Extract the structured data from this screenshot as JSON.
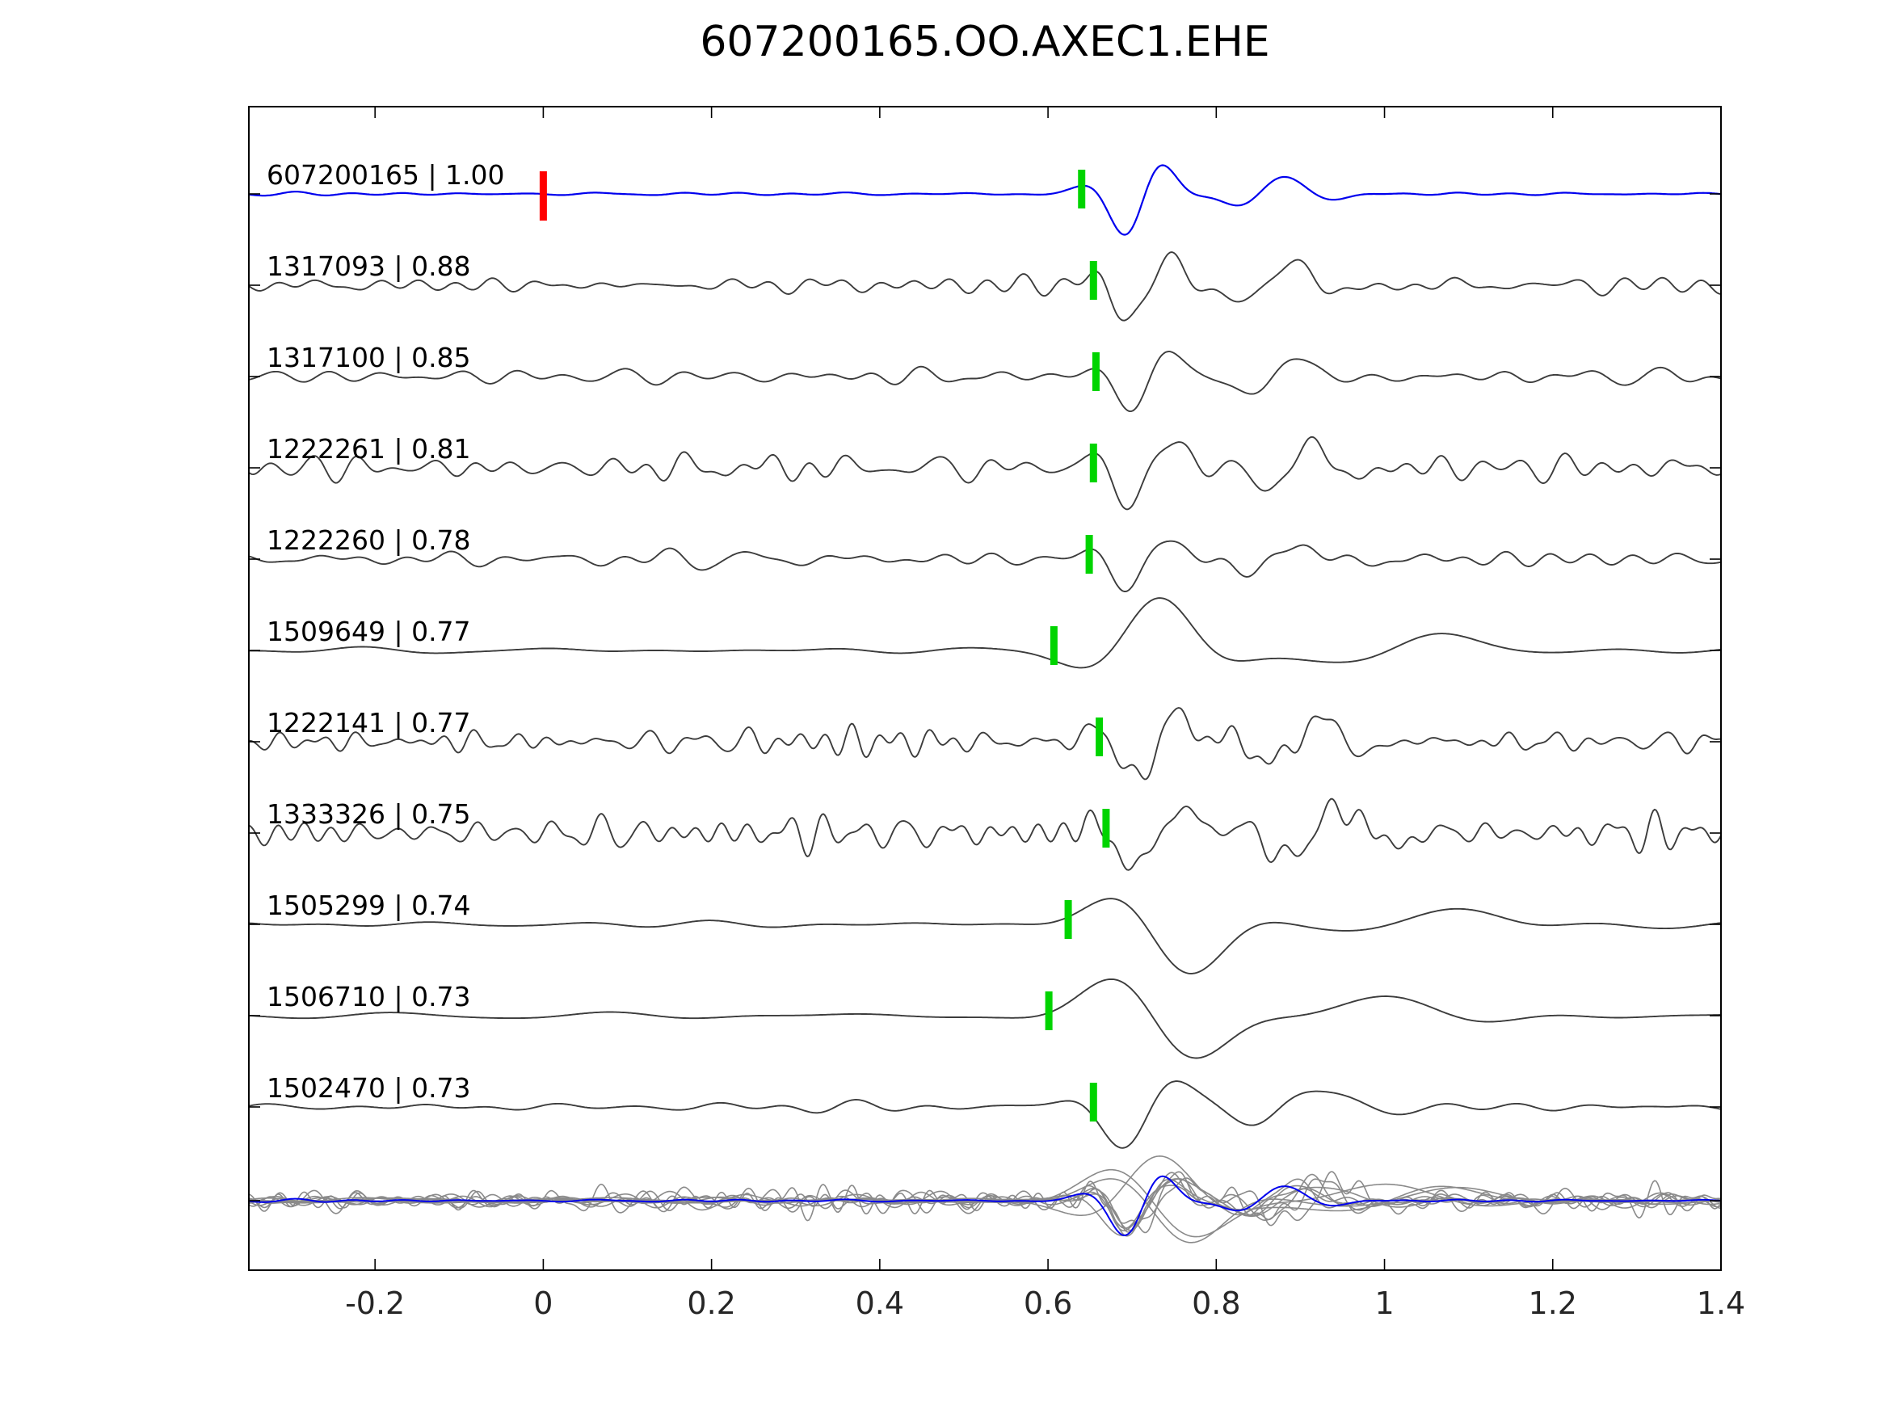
{
  "title": "607200165.OO.AXEC1.EHE",
  "chart_data": {
    "type": "line",
    "title": "607200165.OO.AXEC1.EHE",
    "xlabel": "",
    "ylabel": "",
    "xlim": [
      -0.35,
      1.4
    ],
    "x_ticks": [
      -0.2,
      0,
      0.2,
      0.4,
      0.6,
      0.8,
      1,
      1.2,
      1.4
    ],
    "x_tick_labels": [
      "-0.2",
      "0",
      "0.2",
      "0.4",
      "0.6",
      "0.8",
      "1",
      "1.2",
      "1.4"
    ],
    "grid": false,
    "legend": "none",
    "label_separator": " | ",
    "colors": {
      "template": "#0000ee",
      "trace": "#3c3c3c",
      "overlay": "#8a8a8a",
      "pick": "#00d400",
      "origin_marker": "#ff0000",
      "frame": "#000000",
      "text": "#000000",
      "tick_text": "#262626"
    },
    "template_origin_time": 0.0,
    "overlay_scale": 0.85,
    "traces": [
      {
        "id": "607200165",
        "cc": "1.00",
        "pick": 0.64,
        "is_template": true,
        "seed": 101,
        "noise_amp": 0.05,
        "noise_f": [
          6,
          18
        ],
        "wavelet": [
          1.0,
          0.705,
          0.05,
          9.0,
          -0.6
        ],
        "coda": [
          0.4,
          0.87,
          0.07,
          7.5,
          0.9
        ]
      },
      {
        "id": "1317093",
        "cc": "0.88",
        "pick": 0.654,
        "is_template": false,
        "seed": 102,
        "noise_amp": 0.25,
        "noise_f": [
          7,
          24
        ],
        "wavelet": [
          0.8,
          0.71,
          0.055,
          9.0,
          -0.6
        ],
        "coda": [
          0.5,
          0.88,
          0.08,
          7.0,
          0.9
        ]
      },
      {
        "id": "1317100",
        "cc": "0.85",
        "pick": 0.657,
        "is_template": false,
        "seed": 103,
        "noise_amp": 0.22,
        "noise_f": [
          7,
          22
        ],
        "wavelet": [
          0.8,
          0.71,
          0.055,
          9.0,
          -0.6
        ],
        "coda": [
          0.45,
          0.88,
          0.08,
          7.0,
          0.4
        ]
      },
      {
        "id": "1222261",
        "cc": "0.81",
        "pick": 0.654,
        "is_template": false,
        "seed": 104,
        "noise_amp": 0.35,
        "noise_f": [
          9,
          28
        ],
        "wavelet": [
          0.85,
          0.71,
          0.06,
          9.0,
          -0.6
        ],
        "coda": [
          0.5,
          0.89,
          0.09,
          8.0,
          0.2
        ]
      },
      {
        "id": "1222260",
        "cc": "0.78",
        "pick": 0.649,
        "is_template": false,
        "seed": 105,
        "noise_amp": 0.24,
        "noise_f": [
          7,
          22
        ],
        "wavelet": [
          0.7,
          0.71,
          0.055,
          9.0,
          -0.6
        ],
        "coda": [
          0.35,
          0.88,
          0.08,
          7.0,
          0.5
        ]
      },
      {
        "id": "1509649",
        "cc": "0.77",
        "pick": 0.607,
        "is_template": false,
        "seed": 106,
        "noise_amp": 0.08,
        "noise_f": [
          3,
          9
        ],
        "wavelet": [
          1.15,
          0.73,
          0.09,
          4.2,
          1.4
        ],
        "coda": [
          0.45,
          1.02,
          0.13,
          3.2,
          0.3
        ]
      },
      {
        "id": "1222141",
        "cc": "0.77",
        "pick": 0.661,
        "is_template": false,
        "seed": 107,
        "noise_amp": 0.4,
        "noise_f": [
          12,
          36
        ],
        "wavelet": [
          0.9,
          0.72,
          0.06,
          9.0,
          -0.6
        ],
        "coda": [
          0.55,
          0.9,
          0.09,
          8.0,
          0.3
        ]
      },
      {
        "id": "1333326",
        "cc": "0.75",
        "pick": 0.669,
        "is_template": false,
        "seed": 108,
        "noise_amp": 0.52,
        "noise_f": [
          12,
          36
        ],
        "wavelet": [
          0.85,
          0.72,
          0.06,
          8.0,
          -0.6
        ],
        "coda": [
          0.6,
          0.92,
          0.1,
          7.0,
          0.2
        ]
      },
      {
        "id": "1505299",
        "cc": "0.74",
        "pick": 0.624,
        "is_template": false,
        "seed": 109,
        "noise_amp": 0.09,
        "noise_f": [
          3,
          9
        ],
        "wavelet": [
          1.25,
          0.745,
          0.095,
          3.8,
          -2.4
        ],
        "coda": [
          0.4,
          1.05,
          0.13,
          3.0,
          0.8
        ]
      },
      {
        "id": "1506710",
        "cc": "0.73",
        "pick": 0.601,
        "is_template": false,
        "seed": 110,
        "noise_amp": 0.08,
        "noise_f": [
          3,
          8
        ],
        "wavelet": [
          1.15,
          0.73,
          0.1,
          3.8,
          3.3
        ],
        "coda": [
          0.45,
          1.0,
          0.14,
          3.0,
          1.5
        ]
      },
      {
        "id": "1502470",
        "cc": "0.73",
        "pick": 0.654,
        "is_template": false,
        "seed": 111,
        "noise_amp": 0.16,
        "noise_f": [
          5,
          14
        ],
        "wavelet": [
          0.95,
          0.71,
          0.07,
          6.0,
          -0.6
        ],
        "coda": [
          0.4,
          0.9,
          0.1,
          5.0,
          0.6
        ]
      }
    ]
  }
}
